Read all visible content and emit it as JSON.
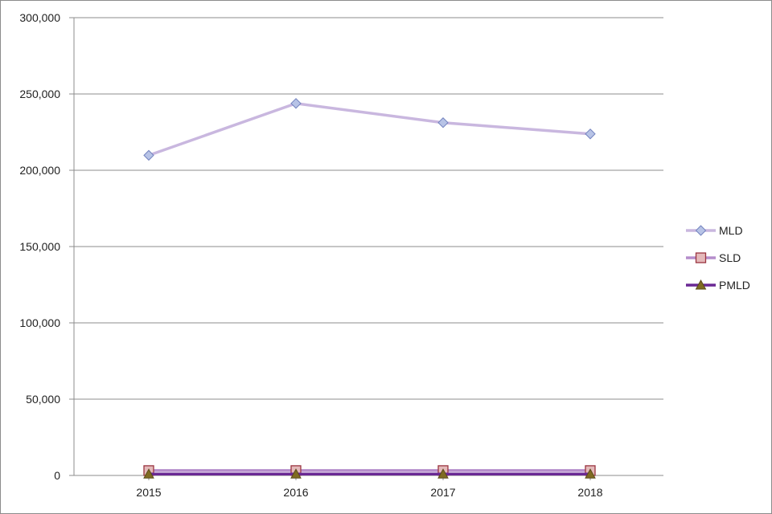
{
  "chart_data": {
    "type": "line",
    "categories": [
      "2015",
      "2016",
      "2017",
      "2018"
    ],
    "series": [
      {
        "name": "MLD",
        "values": [
          209800,
          243800,
          231200,
          223800
        ],
        "color": "#c9b7df",
        "marker": "diamond",
        "marker_fill": "#b7c3e6",
        "marker_stroke": "#7383bf"
      },
      {
        "name": "SLD",
        "values": [
          3200,
          3200,
          3200,
          3200
        ],
        "color": "#b58dcb",
        "marker": "square",
        "marker_fill": "#e4b9ba",
        "marker_stroke": "#9a3440"
      },
      {
        "name": "PMLD",
        "values": [
          900,
          900,
          900,
          900
        ],
        "color": "#6a2894",
        "marker": "triangle",
        "marker_fill": "#7f6b22",
        "marker_stroke": "#5b4c1b"
      }
    ],
    "y_ticks": [
      "0",
      "50,000",
      "100,000",
      "150,000",
      "200,000",
      "250,000",
      "300,000"
    ],
    "ylim": [
      0,
      300000
    ],
    "grid": true,
    "legend_position": "right"
  }
}
